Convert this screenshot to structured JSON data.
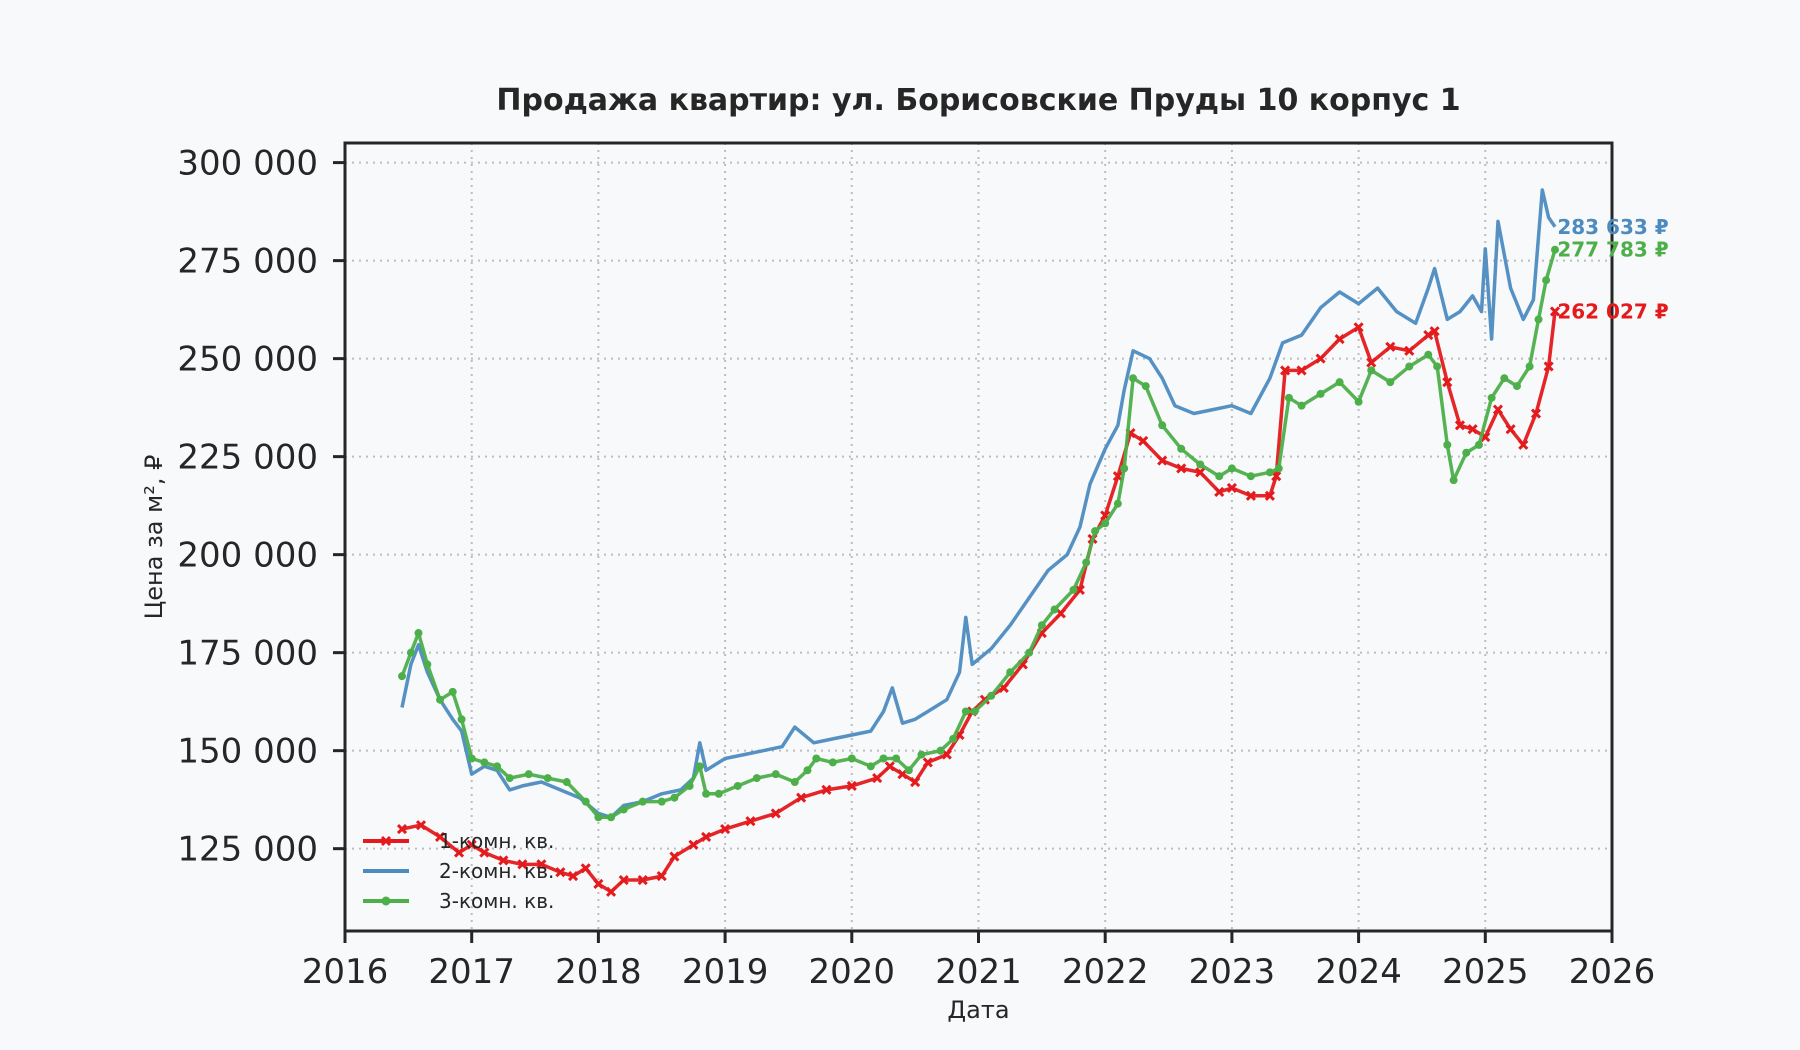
{
  "chart_data": {
    "type": "line",
    "title": "Продажа квартир: ул. Борисовские Пруды 10 корпус 1",
    "xlabel": "Дата",
    "ylabel": "Цена за м², ₽",
    "xlim": [
      2016,
      2026
    ],
    "ylim": [
      104000,
      305000
    ],
    "xticks": [
      "2016",
      "2017",
      "2018",
      "2019",
      "2020",
      "2021",
      "2022",
      "2023",
      "2024",
      "2025",
      "2026"
    ],
    "yticks": [
      {
        "value": 125000,
        "label": "125 000"
      },
      {
        "value": 150000,
        "label": "150 000"
      },
      {
        "value": 175000,
        "label": "175 000"
      },
      {
        "value": 200000,
        "label": "200 000"
      },
      {
        "value": 225000,
        "label": "225 000"
      },
      {
        "value": 250000,
        "label": "250 000"
      },
      {
        "value": 275000,
        "label": "275 000"
      },
      {
        "value": 300000,
        "label": "300 000"
      }
    ],
    "grid": true,
    "legend_position": "lower-left",
    "series": [
      {
        "name": "1-комн. кв.",
        "color": "#e41a1c",
        "marker": "x",
        "end_label": "262 027 ₽",
        "points": [
          [
            2016.45,
            130000
          ],
          [
            2016.6,
            131000
          ],
          [
            2016.75,
            128000
          ],
          [
            2016.9,
            124000
          ],
          [
            2017.0,
            126000
          ],
          [
            2017.1,
            124000
          ],
          [
            2017.25,
            122000
          ],
          [
            2017.4,
            121000
          ],
          [
            2017.55,
            121000
          ],
          [
            2017.7,
            119000
          ],
          [
            2017.8,
            118000
          ],
          [
            2017.9,
            120000
          ],
          [
            2018.0,
            116000
          ],
          [
            2018.1,
            114000
          ],
          [
            2018.2,
            117000
          ],
          [
            2018.35,
            117000
          ],
          [
            2018.5,
            118000
          ],
          [
            2018.6,
            123000
          ],
          [
            2018.75,
            126000
          ],
          [
            2018.85,
            128000
          ],
          [
            2019.0,
            130000
          ],
          [
            2019.2,
            132000
          ],
          [
            2019.4,
            134000
          ],
          [
            2019.6,
            138000
          ],
          [
            2019.8,
            140000
          ],
          [
            2020.0,
            141000
          ],
          [
            2020.2,
            143000
          ],
          [
            2020.3,
            146000
          ],
          [
            2020.4,
            144000
          ],
          [
            2020.5,
            142000
          ],
          [
            2020.6,
            147000
          ],
          [
            2020.75,
            149000
          ],
          [
            2020.85,
            154000
          ],
          [
            2020.95,
            160000
          ],
          [
            2021.05,
            163000
          ],
          [
            2021.2,
            166000
          ],
          [
            2021.35,
            172000
          ],
          [
            2021.5,
            180000
          ],
          [
            2021.65,
            185000
          ],
          [
            2021.8,
            191000
          ],
          [
            2021.9,
            204000
          ],
          [
            2022.0,
            210000
          ],
          [
            2022.1,
            220000
          ],
          [
            2022.2,
            231000
          ],
          [
            2022.3,
            229000
          ],
          [
            2022.45,
            224000
          ],
          [
            2022.6,
            222000
          ],
          [
            2022.75,
            221000
          ],
          [
            2022.9,
            216000
          ],
          [
            2023.0,
            217000
          ],
          [
            2023.15,
            215000
          ],
          [
            2023.3,
            215000
          ],
          [
            2023.35,
            220000
          ],
          [
            2023.42,
            247000
          ],
          [
            2023.55,
            247000
          ],
          [
            2023.7,
            250000
          ],
          [
            2023.85,
            255000
          ],
          [
            2024.0,
            258000
          ],
          [
            2024.1,
            249000
          ],
          [
            2024.25,
            253000
          ],
          [
            2024.4,
            252000
          ],
          [
            2024.55,
            256000
          ],
          [
            2024.6,
            257000
          ],
          [
            2024.7,
            244000
          ],
          [
            2024.8,
            233000
          ],
          [
            2024.9,
            232000
          ],
          [
            2025.0,
            230000
          ],
          [
            2025.1,
            237000
          ],
          [
            2025.2,
            232000
          ],
          [
            2025.3,
            228000
          ],
          [
            2025.4,
            236000
          ],
          [
            2025.5,
            248000
          ],
          [
            2025.55,
            262027
          ]
        ]
      },
      {
        "name": "2-комн. кв.",
        "color": "#4c8bc0",
        "marker": "none",
        "end_label": "283 633 ₽",
        "points": [
          [
            2016.45,
            161000
          ],
          [
            2016.52,
            172000
          ],
          [
            2016.58,
            177000
          ],
          [
            2016.65,
            170000
          ],
          [
            2016.75,
            163000
          ],
          [
            2016.85,
            158000
          ],
          [
            2016.92,
            155000
          ],
          [
            2017.0,
            144000
          ],
          [
            2017.1,
            146000
          ],
          [
            2017.2,
            145000
          ],
          [
            2017.3,
            140000
          ],
          [
            2017.4,
            141000
          ],
          [
            2017.55,
            142000
          ],
          [
            2017.7,
            140000
          ],
          [
            2017.85,
            138000
          ],
          [
            2018.0,
            134000
          ],
          [
            2018.1,
            133000
          ],
          [
            2018.2,
            136000
          ],
          [
            2018.35,
            137000
          ],
          [
            2018.5,
            139000
          ],
          [
            2018.65,
            140000
          ],
          [
            2018.75,
            143000
          ],
          [
            2018.8,
            152000
          ],
          [
            2018.85,
            145000
          ],
          [
            2019.0,
            148000
          ],
          [
            2019.15,
            149000
          ],
          [
            2019.3,
            150000
          ],
          [
            2019.45,
            151000
          ],
          [
            2019.55,
            156000
          ],
          [
            2019.7,
            152000
          ],
          [
            2019.85,
            153000
          ],
          [
            2020.0,
            154000
          ],
          [
            2020.15,
            155000
          ],
          [
            2020.25,
            160000
          ],
          [
            2020.32,
            166000
          ],
          [
            2020.4,
            157000
          ],
          [
            2020.5,
            158000
          ],
          [
            2020.6,
            160000
          ],
          [
            2020.75,
            163000
          ],
          [
            2020.85,
            170000
          ],
          [
            2020.9,
            184000
          ],
          [
            2020.95,
            172000
          ],
          [
            2021.1,
            176000
          ],
          [
            2021.25,
            182000
          ],
          [
            2021.4,
            189000
          ],
          [
            2021.55,
            196000
          ],
          [
            2021.7,
            200000
          ],
          [
            2021.8,
            207000
          ],
          [
            2021.88,
            218000
          ],
          [
            2022.0,
            227000
          ],
          [
            2022.1,
            233000
          ],
          [
            2022.15,
            242000
          ],
          [
            2022.22,
            252000
          ],
          [
            2022.35,
            250000
          ],
          [
            2022.45,
            245000
          ],
          [
            2022.55,
            238000
          ],
          [
            2022.7,
            236000
          ],
          [
            2022.85,
            237000
          ],
          [
            2023.0,
            238000
          ],
          [
            2023.15,
            236000
          ],
          [
            2023.3,
            245000
          ],
          [
            2023.4,
            254000
          ],
          [
            2023.55,
            256000
          ],
          [
            2023.7,
            263000
          ],
          [
            2023.85,
            267000
          ],
          [
            2024.0,
            264000
          ],
          [
            2024.15,
            268000
          ],
          [
            2024.3,
            262000
          ],
          [
            2024.45,
            259000
          ],
          [
            2024.55,
            268000
          ],
          [
            2024.6,
            273000
          ],
          [
            2024.7,
            260000
          ],
          [
            2024.8,
            262000
          ],
          [
            2024.9,
            266000
          ],
          [
            2024.97,
            262000
          ],
          [
            2025.0,
            278000
          ],
          [
            2025.05,
            255000
          ],
          [
            2025.1,
            285000
          ],
          [
            2025.2,
            268000
          ],
          [
            2025.3,
            260000
          ],
          [
            2025.38,
            265000
          ],
          [
            2025.45,
            293000
          ],
          [
            2025.5,
            286000
          ],
          [
            2025.55,
            283633
          ]
        ]
      },
      {
        "name": "3-комн. кв.",
        "color": "#4daf4a",
        "marker": "dot",
        "end_label": "277 783 ₽",
        "points": [
          [
            2016.45,
            169000
          ],
          [
            2016.52,
            175000
          ],
          [
            2016.58,
            180000
          ],
          [
            2016.65,
            172000
          ],
          [
            2016.75,
            163000
          ],
          [
            2016.85,
            165000
          ],
          [
            2016.92,
            158000
          ],
          [
            2017.0,
            148000
          ],
          [
            2017.1,
            147000
          ],
          [
            2017.2,
            146000
          ],
          [
            2017.3,
            143000
          ],
          [
            2017.45,
            144000
          ],
          [
            2017.6,
            143000
          ],
          [
            2017.75,
            142000
          ],
          [
            2017.9,
            137000
          ],
          [
            2018.0,
            133000
          ],
          [
            2018.1,
            133000
          ],
          [
            2018.2,
            135000
          ],
          [
            2018.35,
            137000
          ],
          [
            2018.5,
            137000
          ],
          [
            2018.6,
            138000
          ],
          [
            2018.72,
            141000
          ],
          [
            2018.8,
            146000
          ],
          [
            2018.85,
            139000
          ],
          [
            2018.95,
            139000
          ],
          [
            2019.1,
            141000
          ],
          [
            2019.25,
            143000
          ],
          [
            2019.4,
            144000
          ],
          [
            2019.55,
            142000
          ],
          [
            2019.65,
            145000
          ],
          [
            2019.72,
            148000
          ],
          [
            2019.85,
            147000
          ],
          [
            2020.0,
            148000
          ],
          [
            2020.15,
            146000
          ],
          [
            2020.25,
            148000
          ],
          [
            2020.35,
            148000
          ],
          [
            2020.45,
            145000
          ],
          [
            2020.55,
            149000
          ],
          [
            2020.7,
            150000
          ],
          [
            2020.8,
            153000
          ],
          [
            2020.9,
            160000
          ],
          [
            2020.97,
            160000
          ],
          [
            2021.1,
            164000
          ],
          [
            2021.25,
            170000
          ],
          [
            2021.4,
            175000
          ],
          [
            2021.5,
            182000
          ],
          [
            2021.6,
            186000
          ],
          [
            2021.75,
            191000
          ],
          [
            2021.85,
            198000
          ],
          [
            2021.92,
            206000
          ],
          [
            2022.0,
            208000
          ],
          [
            2022.1,
            213000
          ],
          [
            2022.15,
            222000
          ],
          [
            2022.22,
            245000
          ],
          [
            2022.32,
            243000
          ],
          [
            2022.45,
            233000
          ],
          [
            2022.6,
            227000
          ],
          [
            2022.75,
            223000
          ],
          [
            2022.9,
            220000
          ],
          [
            2023.0,
            222000
          ],
          [
            2023.15,
            220000
          ],
          [
            2023.3,
            221000
          ],
          [
            2023.37,
            222000
          ],
          [
            2023.45,
            240000
          ],
          [
            2023.55,
            238000
          ],
          [
            2023.7,
            241000
          ],
          [
            2023.85,
            244000
          ],
          [
            2024.0,
            239000
          ],
          [
            2024.1,
            247000
          ],
          [
            2024.25,
            244000
          ],
          [
            2024.4,
            248000
          ],
          [
            2024.55,
            251000
          ],
          [
            2024.62,
            248000
          ],
          [
            2024.7,
            228000
          ],
          [
            2024.75,
            219000
          ],
          [
            2024.85,
            226000
          ],
          [
            2024.95,
            228000
          ],
          [
            2025.05,
            240000
          ],
          [
            2025.15,
            245000
          ],
          [
            2025.25,
            243000
          ],
          [
            2025.35,
            248000
          ],
          [
            2025.42,
            260000
          ],
          [
            2025.48,
            270000
          ],
          [
            2025.55,
            277783
          ]
        ]
      }
    ]
  }
}
